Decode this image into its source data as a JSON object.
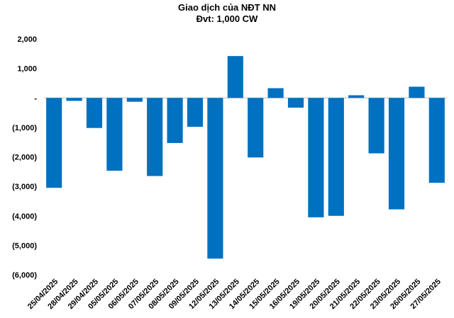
{
  "chart_data": {
    "type": "bar",
    "title": "Giao dịch của NĐT NN",
    "subtitle": "Đvt: 1,000 CW",
    "xlabel": "",
    "ylabel": "",
    "categories": [
      "25/04/2025",
      "28/04/2025",
      "29/04/2025",
      "05/05/2025",
      "06/05/2025",
      "07/05/2025",
      "08/05/2025",
      "09/05/2025",
      "12/05/2025",
      "13/05/2025",
      "14/05/2025",
      "15/05/2025",
      "16/05/2025",
      "19/05/2025",
      "20/05/2025",
      "21/05/2025",
      "22/05/2025",
      "23/05/2025",
      "26/05/2025",
      "27/05/2025"
    ],
    "values": [
      -3050,
      -100,
      -1020,
      -2470,
      -130,
      -2650,
      -1530,
      -980,
      -5450,
      1420,
      -2020,
      330,
      -330,
      -4050,
      -4000,
      90,
      -1880,
      -3780,
      380,
      -2880
    ],
    "ylim": [
      -6000,
      2000
    ],
    "yticks": [
      2000,
      1000,
      0,
      -1000,
      -2000,
      -3000,
      -4000,
      -5000,
      -6000
    ],
    "ytick_labels": [
      "2,000",
      "1,000",
      "-",
      "(1,000)",
      "(2,000)",
      "(3,000)",
      "(4,000)",
      "(5,000)",
      "(6,000)"
    ],
    "bar_color": "#0070C0",
    "grid": false,
    "legend": "none"
  }
}
